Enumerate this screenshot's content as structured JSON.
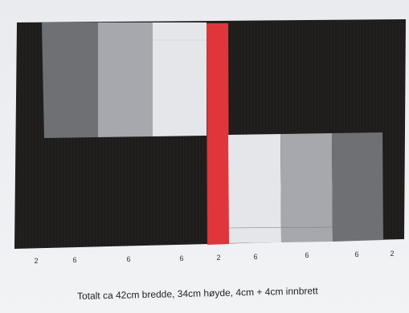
{
  "colors": {
    "dark_background": "#1f1d1c",
    "red_stripe": "#e0353b",
    "gray_dark": "#6f7073",
    "gray_mid": "#a6a8ad",
    "gray_light": "#e5e6ea",
    "paper": "#eceef1"
  },
  "panel": {
    "top_row_blocks": [
      "gray_dark",
      "gray_mid",
      "gray_light"
    ],
    "center_stripe": "red_stripe",
    "bottom_row_blocks": [
      "gray_light",
      "gray_mid",
      "gray_dark"
    ]
  },
  "dimension_labels": [
    "2",
    "6",
    "6",
    "6",
    "2",
    "6",
    "6",
    "6",
    "2"
  ],
  "caption": "Totalt ca 42cm bredde, 34cm høyde, 4cm + 4cm innbrett"
}
